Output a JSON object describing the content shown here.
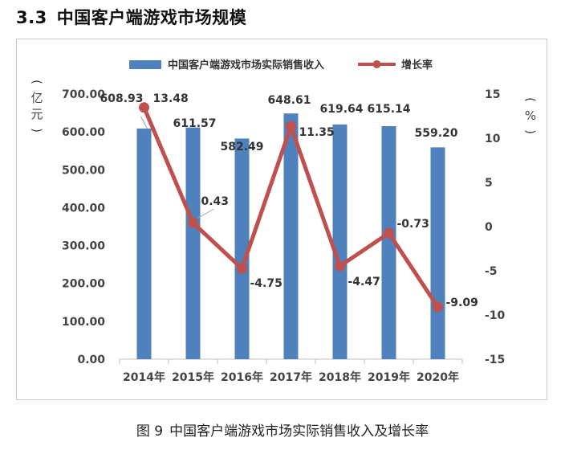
{
  "heading": {
    "number": "3.3",
    "text": "中国客户端游戏市场规模"
  },
  "caption": {
    "figure": "图 9",
    "text": "中国客户端游戏市场实际销售收入及增长率"
  },
  "chart_data": {
    "type": "bar",
    "categories": [
      "2014年",
      "2015年",
      "2016年",
      "2017年",
      "2018年",
      "2019年",
      "2020年"
    ],
    "series": [
      {
        "name": "中国客户端游戏市场实际销售收入",
        "type": "bar",
        "axis": "left",
        "values": [
          608.93,
          611.57,
          582.49,
          648.61,
          619.64,
          615.14,
          559.2
        ],
        "labels": [
          "608.93",
          "611.57",
          "582.49",
          "648.61",
          "619.64",
          "615.14",
          "559.20"
        ],
        "color": "#4f81bd"
      },
      {
        "name": "增长率",
        "type": "line",
        "axis": "right",
        "values": [
          13.48,
          0.43,
          -4.75,
          11.35,
          -4.47,
          -0.73,
          -9.09
        ],
        "labels": [
          "13.48",
          "0.43",
          "-4.75",
          "11.35",
          "-4.47",
          "-0.73",
          "-9.09"
        ],
        "color": "#c0504d"
      }
    ],
    "y_left": {
      "unit_label": "(亿元)",
      "range": [
        0,
        700
      ],
      "ticks": [
        "0.00",
        "100.00",
        "200.00",
        "300.00",
        "400.00",
        "500.00",
        "600.00",
        "700.00"
      ]
    },
    "y_right": {
      "unit_label": "(%)",
      "range": [
        -15,
        15
      ],
      "ticks": [
        "-15",
        "-10",
        "-5",
        "0",
        "5",
        "10",
        "15"
      ]
    },
    "legend_position": "top",
    "grid": false
  }
}
